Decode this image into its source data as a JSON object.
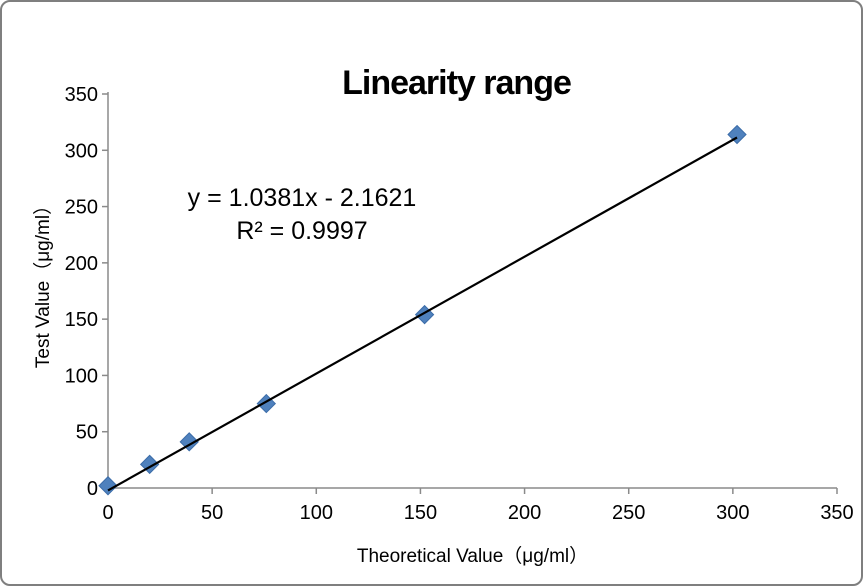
{
  "chart_data": {
    "type": "scatter",
    "title": "Linearity range",
    "xlabel": "Theoretical Value（μg/ml）",
    "ylabel": "Test Value（μg/ml）",
    "xlim": [
      0,
      350
    ],
    "ylim": [
      0,
      350
    ],
    "x_ticks": [
      0,
      50,
      100,
      150,
      200,
      250,
      300,
      350
    ],
    "y_ticks": [
      0,
      50,
      100,
      150,
      200,
      250,
      300,
      350
    ],
    "points": [
      {
        "x": 0,
        "y": 2
      },
      {
        "x": 20,
        "y": 21
      },
      {
        "x": 39,
        "y": 41
      },
      {
        "x": 76,
        "y": 75
      },
      {
        "x": 152,
        "y": 154
      },
      {
        "x": 302,
        "y": 314
      }
    ],
    "trendline": {
      "slope": 1.0381,
      "intercept": -2.1621,
      "x_start": 0,
      "x_end": 302
    },
    "annotation": {
      "equation": "y = 1.0381x - 2.1621",
      "r_squared": "R² = 0.9997"
    },
    "grid": false,
    "legend_position": "none",
    "marker": {
      "shape": "diamond",
      "fill": "#4F81BD",
      "stroke": "#3B6CA8",
      "half_size": 9
    },
    "colors": {
      "axis": "#8A8A8A",
      "trendline": "#000000",
      "text": "#000000",
      "frame_border": "#7F7F7F",
      "background": "#FFFFFF"
    }
  }
}
